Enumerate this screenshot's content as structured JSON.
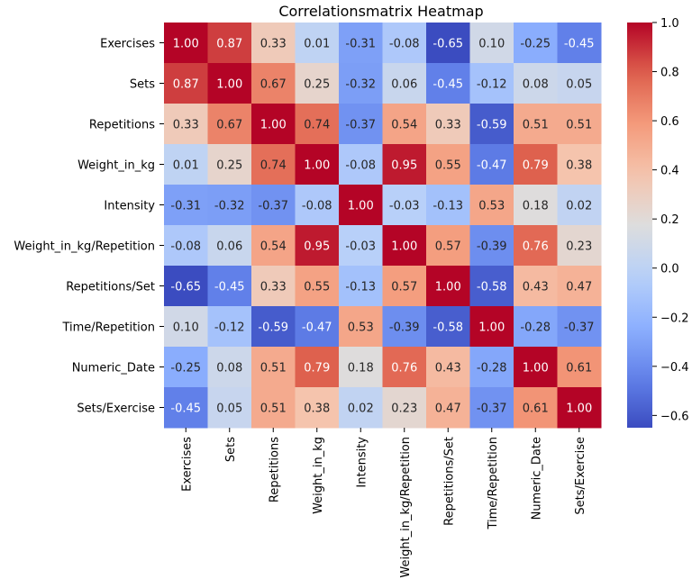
{
  "chart_data": {
    "type": "heatmap",
    "title": "Correlationsmatrix Heatmap",
    "row_labels": [
      "Exercises",
      "Sets",
      "Repetitions",
      "Weight_in_kg",
      "Intensity",
      "Weight_in_kg/Repetition",
      "Repetitions/Set",
      "Time/Repetition",
      "Numeric_Date",
      "Sets/Exercise"
    ],
    "col_labels": [
      "Exercises",
      "Sets",
      "Repetitions",
      "Weight_in_kg",
      "Intensity",
      "Weight_in_kg/Repetition",
      "Repetitions/Set",
      "Time/Repetition",
      "Numeric_Date",
      "Sets/Exercise"
    ],
    "values": [
      [
        1.0,
        0.87,
        0.33,
        0.01,
        -0.31,
        -0.08,
        -0.65,
        0.1,
        -0.25,
        -0.45
      ],
      [
        0.87,
        1.0,
        0.67,
        0.25,
        -0.32,
        0.06,
        -0.45,
        -0.12,
        0.08,
        0.05
      ],
      [
        0.33,
        0.67,
        1.0,
        0.74,
        -0.37,
        0.54,
        0.33,
        -0.59,
        0.51,
        0.51
      ],
      [
        0.01,
        0.25,
        0.74,
        1.0,
        -0.08,
        0.95,
        0.55,
        -0.47,
        0.79,
        0.38
      ],
      [
        -0.31,
        -0.32,
        -0.37,
        -0.08,
        1.0,
        -0.03,
        -0.13,
        0.53,
        0.18,
        0.02
      ],
      [
        -0.08,
        0.06,
        0.54,
        0.95,
        -0.03,
        1.0,
        0.57,
        -0.39,
        0.76,
        0.23
      ],
      [
        -0.65,
        -0.45,
        0.33,
        0.55,
        -0.13,
        0.57,
        1.0,
        -0.58,
        0.43,
        0.47
      ],
      [
        0.1,
        -0.12,
        -0.59,
        -0.47,
        0.53,
        -0.39,
        -0.58,
        1.0,
        -0.28,
        -0.37
      ],
      [
        -0.25,
        0.08,
        0.51,
        0.79,
        0.18,
        0.76,
        0.43,
        -0.28,
        1.0,
        0.61
      ],
      [
        -0.45,
        0.05,
        0.51,
        0.38,
        0.02,
        0.23,
        0.47,
        -0.37,
        0.61,
        1.0
      ]
    ],
    "colormap": "coolwarm",
    "vmin": -0.65,
    "vmax": 1.0,
    "colorbar_ticks": [
      "1.0",
      "0.8",
      "0.6",
      "0.4",
      "0.2",
      "0.0",
      "−0.2",
      "−0.4",
      "−0.6"
    ],
    "colorbar_tick_values": [
      1.0,
      0.8,
      0.6,
      0.4,
      0.2,
      0.0,
      -0.2,
      -0.4,
      -0.6
    ],
    "annotations": true,
    "colorbar_position": "right"
  }
}
